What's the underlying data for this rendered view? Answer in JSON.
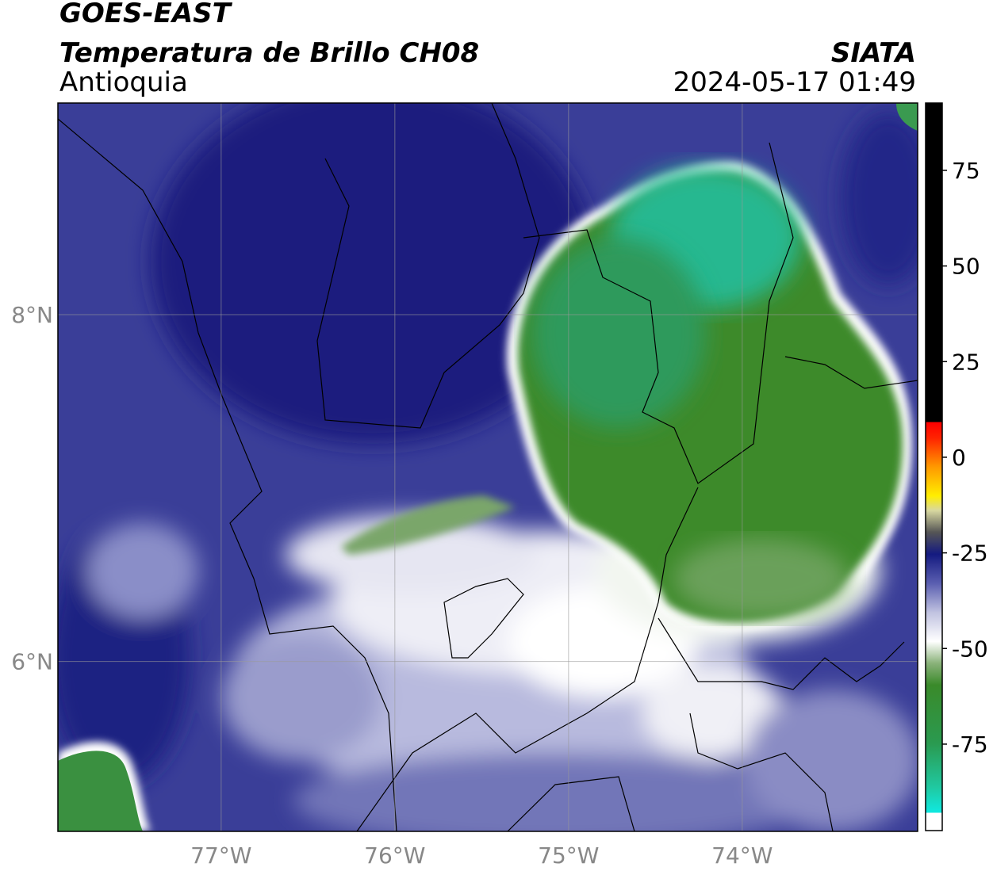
{
  "header": {
    "satellite": "GOES-EAST",
    "product": "Temperatura de Brillo CH08",
    "region": "Antioquia",
    "source": "SIATA",
    "datetime": "2024-05-17 01:49"
  },
  "map": {
    "lonlim": [
      -77.94,
      -72.99
    ],
    "latlim": [
      5.02,
      9.22
    ],
    "lonticks": [
      {
        "value": -77,
        "label": "77°W"
      },
      {
        "value": -76,
        "label": "76°W"
      },
      {
        "value": -75,
        "label": "75°W"
      },
      {
        "value": -74,
        "label": "74°W"
      }
    ],
    "latticks": [
      {
        "value": 8,
        "label": "8°N"
      },
      {
        "value": 6,
        "label": "6°N"
      }
    ],
    "grid": true
  },
  "colorbar": {
    "lim": [
      -97.6,
      92.6
    ],
    "ticks": [
      75,
      50,
      25,
      0,
      -25,
      -50,
      -75
    ]
  }
}
